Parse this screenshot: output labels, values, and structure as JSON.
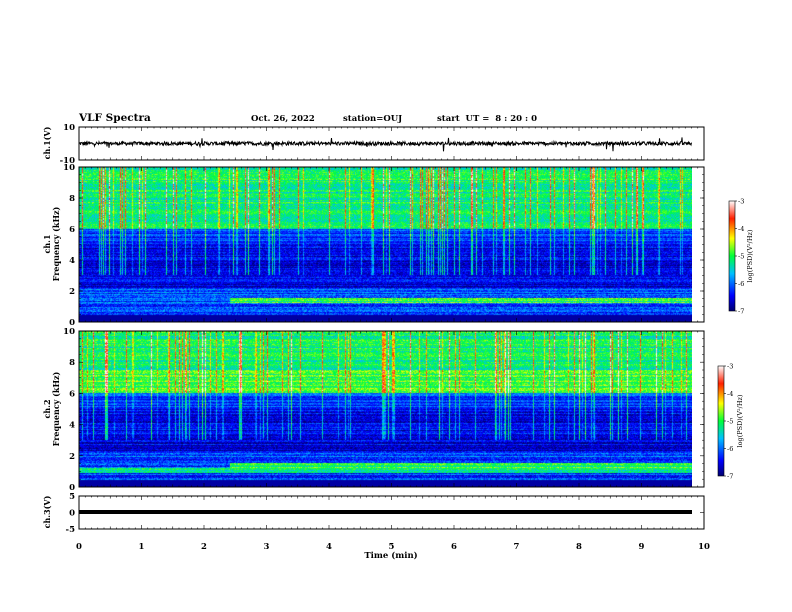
{
  "header": {
    "title": "VLF Spectra",
    "date": "Oct. 26, 2022",
    "station": "station=OUJ",
    "start": "start  UT =  8 : 20 : 0"
  },
  "chart_data": [
    {
      "type": "line",
      "panel": "ch1-waveform",
      "ylabel": "ch.1(V)",
      "ylim": [
        -10,
        10
      ],
      "yticks": [
        "10",
        "-10"
      ],
      "xlim": [
        0,
        10
      ],
      "grid": false
    },
    {
      "type": "heatmap",
      "panel": "ch1-spectrogram",
      "ylabel": "ch.1\nFrequency (kHz)",
      "ylabel_lines": [
        "ch.1",
        "Frequency (kHz)"
      ],
      "ylim": [
        0,
        10
      ],
      "yticks": [
        "0",
        "2",
        "4",
        "6",
        "8",
        "10"
      ],
      "xlim": [
        0,
        10
      ],
      "colorbar": {
        "label": "log(PSD)(V²/Hz)",
        "range": [
          -7,
          -3
        ],
        "ticks": [
          "-3",
          "-4",
          "-5",
          "-6",
          "-7"
        ]
      }
    },
    {
      "type": "heatmap",
      "panel": "ch2-spectrogram",
      "ylabel": "ch.2\nFrequency (kHz)",
      "ylabel_lines": [
        "ch.2",
        "Frequency (kHz)"
      ],
      "ylim": [
        0,
        10
      ],
      "yticks": [
        "0",
        "2",
        "4",
        "6",
        "8",
        "10"
      ],
      "xlim": [
        0,
        10
      ],
      "colorbar": {
        "label": "log(PSD)(V²/Hz)",
        "range": [
          -7,
          -3
        ],
        "ticks": [
          "-3",
          "-4",
          "-5",
          "-6",
          "-7"
        ]
      }
    },
    {
      "type": "line",
      "panel": "ch3-waveform",
      "ylabel": "ch.3(V)",
      "ylim": [
        -5,
        5
      ],
      "yticks": [
        "5",
        "0",
        "-5"
      ],
      "xlim": [
        0,
        10
      ],
      "xlabel": "Time (min)",
      "xticks": [
        "0",
        "1",
        "2",
        "3",
        "4",
        "5",
        "6",
        "7",
        "8",
        "9",
        "10"
      ],
      "data_end_min": 9.8
    }
  ]
}
